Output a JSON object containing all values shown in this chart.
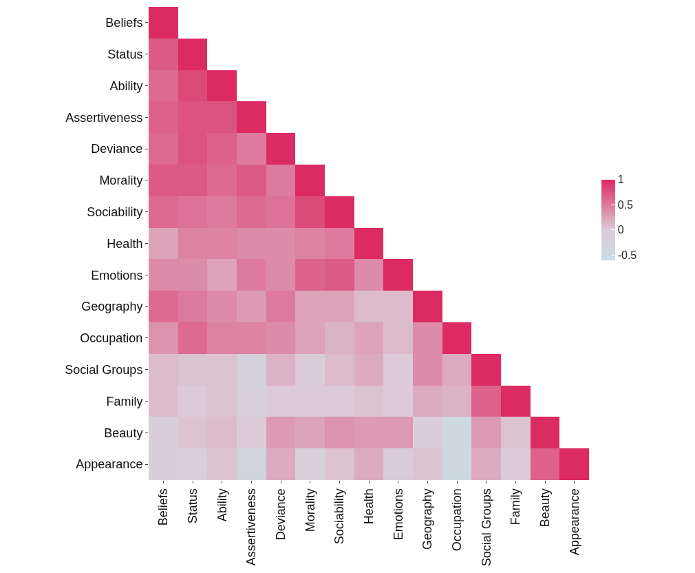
{
  "chart_data": {
    "type": "heatmap",
    "categories": [
      "Beliefs",
      "Status",
      "Ability",
      "Assertiveness",
      "Deviance",
      "Morality",
      "Sociability",
      "Health",
      "Emotions",
      "Geography",
      "Occupation",
      "Social Groups",
      "Family",
      "Beauty",
      "Appearance"
    ],
    "y_categories": [
      "Beliefs",
      "Status",
      "Ability",
      "Assertiveness",
      "Deviance",
      "Morality",
      "Sociability",
      "Health",
      "Emotions",
      "Geography",
      "Occupation",
      "Social Groups",
      "Family",
      "Beauty",
      "Appearance"
    ],
    "cells": [
      [
        1,
        null,
        null,
        null,
        null,
        null,
        null,
        null,
        null,
        null,
        null,
        null,
        null,
        null,
        null
      ],
      [
        0.7,
        1,
        null,
        null,
        null,
        null,
        null,
        null,
        null,
        null,
        null,
        null,
        null,
        null,
        null
      ],
      [
        0.6,
        0.8,
        1,
        null,
        null,
        null,
        null,
        null,
        null,
        null,
        null,
        null,
        null,
        null,
        null
      ],
      [
        0.65,
        0.75,
        0.75,
        1,
        null,
        null,
        null,
        null,
        null,
        null,
        null,
        null,
        null,
        null,
        null
      ],
      [
        0.6,
        0.75,
        0.65,
        0.5,
        1,
        null,
        null,
        null,
        null,
        null,
        null,
        null,
        null,
        null,
        null
      ],
      [
        0.7,
        0.7,
        0.6,
        0.7,
        0.5,
        1,
        null,
        null,
        null,
        null,
        null,
        null,
        null,
        null,
        null
      ],
      [
        0.6,
        0.55,
        0.5,
        0.6,
        0.55,
        0.8,
        1,
        null,
        null,
        null,
        null,
        null,
        null,
        null,
        null
      ],
      [
        0.25,
        0.45,
        0.45,
        0.4,
        0.4,
        0.45,
        0.5,
        1,
        null,
        null,
        null,
        null,
        null,
        null,
        null
      ],
      [
        0.4,
        0.4,
        0.25,
        0.5,
        0.4,
        0.65,
        0.7,
        0.4,
        1,
        null,
        null,
        null,
        null,
        null,
        null
      ],
      [
        0.6,
        0.5,
        0.4,
        0.3,
        0.5,
        0.25,
        0.25,
        0.1,
        0.1,
        1,
        null,
        null,
        null,
        null,
        null
      ],
      [
        0.35,
        0.6,
        0.45,
        0.45,
        0.4,
        0.25,
        0.15,
        0.25,
        0.1,
        0.4,
        1,
        null,
        null,
        null,
        null
      ],
      [
        0.1,
        0.05,
        0.05,
        -0.2,
        0.15,
        -0.05,
        0.1,
        0.2,
        0,
        0.4,
        0.2,
        1,
        null,
        null,
        null
      ],
      [
        0.1,
        0,
        0.05,
        -0.15,
        0,
        0,
        0,
        0.05,
        0,
        0.2,
        0.15,
        0.65,
        1,
        null,
        null
      ],
      [
        -0.1,
        0.05,
        0.1,
        0,
        0.3,
        0.25,
        0.35,
        0.3,
        0.3,
        -0.05,
        -0.45,
        0.3,
        0.05,
        1,
        null
      ],
      [
        -0.1,
        -0.15,
        0.05,
        -0.3,
        0.2,
        -0.15,
        0.05,
        0.2,
        -0.05,
        0.05,
        -0.45,
        0.2,
        0,
        0.65,
        1
      ]
    ],
    "colors": [
      "#c8dde2",
      "#dccbd6",
      "#dc2a63"
    ],
    "clim": [
      -0.6,
      1
    ],
    "cticks": [
      -0.5,
      0,
      0.5,
      1
    ]
  }
}
